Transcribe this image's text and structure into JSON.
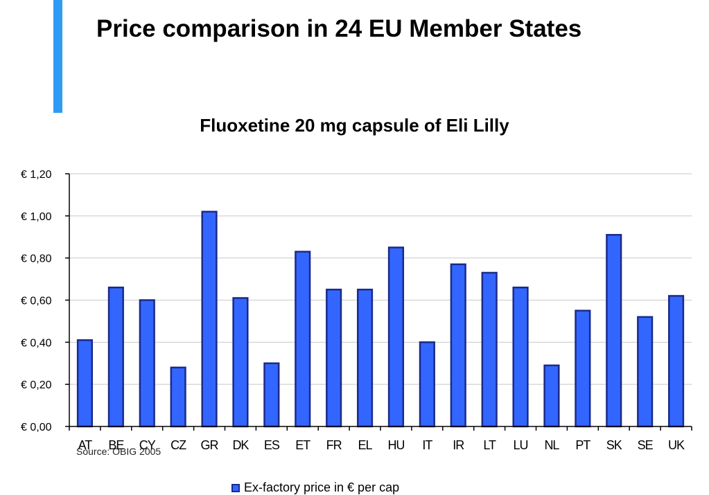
{
  "slide": {
    "title": "Price comparison in 24 EU Member States",
    "source_note": "Source: ÖBIG 2005",
    "accent_color": "#2f9bf5"
  },
  "chart_data": {
    "type": "bar",
    "title": "Fluoxetine 20 mg capsule of Eli Lilly",
    "xlabel": "",
    "ylabel": "",
    "categories": [
      "AT",
      "BE",
      "CY",
      "CZ",
      "GR",
      "DK",
      "ES",
      "ET",
      "FR",
      "EL",
      "HU",
      "IT",
      "IR",
      "LT",
      "LU",
      "NL",
      "PT",
      "SK",
      "SE",
      "UK"
    ],
    "series": [
      {
        "name": "Ex-factory price in € per cap",
        "values": [
          0.41,
          0.66,
          0.6,
          0.28,
          1.02,
          0.61,
          0.3,
          0.83,
          0.65,
          0.65,
          0.85,
          0.4,
          0.77,
          0.73,
          0.66,
          0.29,
          0.55,
          0.91,
          0.52,
          0.62
        ],
        "color": "#3366ff",
        "edge_color": "#1a2a8a"
      }
    ],
    "ylim": [
      0,
      1.2
    ],
    "yticks": [
      0,
      0.2,
      0.4,
      0.6,
      0.8,
      1.0,
      1.2
    ],
    "ytick_labels": [
      "€ 0,00",
      "€ 0,20",
      "€ 0,40",
      "€ 0,60",
      "€ 0,80",
      "€ 1,00",
      "€ 1,20"
    ],
    "grid": true,
    "legend_position": "bottom"
  }
}
